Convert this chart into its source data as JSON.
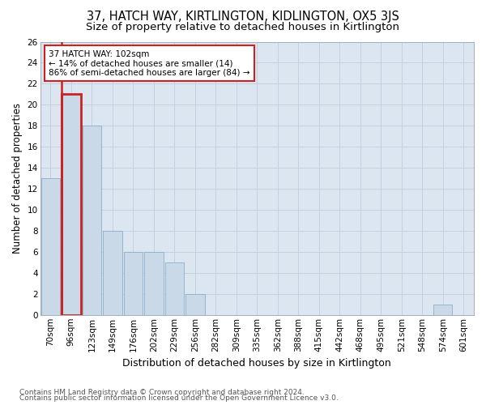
{
  "title": "37, HATCH WAY, KIRTLINGTON, KIDLINGTON, OX5 3JS",
  "subtitle": "Size of property relative to detached houses in Kirtlington",
  "xlabel": "Distribution of detached houses by size in Kirtlington",
  "ylabel": "Number of detached properties",
  "categories": [
    "70sqm",
    "96sqm",
    "123sqm",
    "149sqm",
    "176sqm",
    "202sqm",
    "229sqm",
    "256sqm",
    "282sqm",
    "309sqm",
    "335sqm",
    "362sqm",
    "388sqm",
    "415sqm",
    "442sqm",
    "468sqm",
    "495sqm",
    "521sqm",
    "548sqm",
    "574sqm",
    "601sqm"
  ],
  "values": [
    13,
    21,
    18,
    8,
    6,
    6,
    5,
    2,
    0,
    0,
    0,
    0,
    0,
    0,
    0,
    0,
    0,
    0,
    0,
    1,
    0
  ],
  "bar_color": "#c9d9e8",
  "bar_edge_color": "#8aaec8",
  "highlight_edge_color": "#cc2222",
  "highlight_bar_index": 1,
  "annotation_box_text": "37 HATCH WAY: 102sqm\n← 14% of detached houses are smaller (14)\n86% of semi-detached houses are larger (84) →",
  "annotation_box_color": "#ffffff",
  "annotation_box_edge_color": "#cc2222",
  "ylim": [
    0,
    26
  ],
  "yticks": [
    0,
    2,
    4,
    6,
    8,
    10,
    12,
    14,
    16,
    18,
    20,
    22,
    24,
    26
  ],
  "grid_color": "#c5cfe0",
  "background_color": "#dce6f0",
  "footer_line1": "Contains HM Land Registry data © Crown copyright and database right 2024.",
  "footer_line2": "Contains public sector information licensed under the Open Government Licence v3.0.",
  "title_fontsize": 10.5,
  "subtitle_fontsize": 9.5,
  "xlabel_fontsize": 9,
  "ylabel_fontsize": 8.5,
  "tick_fontsize": 7.5,
  "footer_fontsize": 6.5,
  "annotation_fontsize": 7.5
}
